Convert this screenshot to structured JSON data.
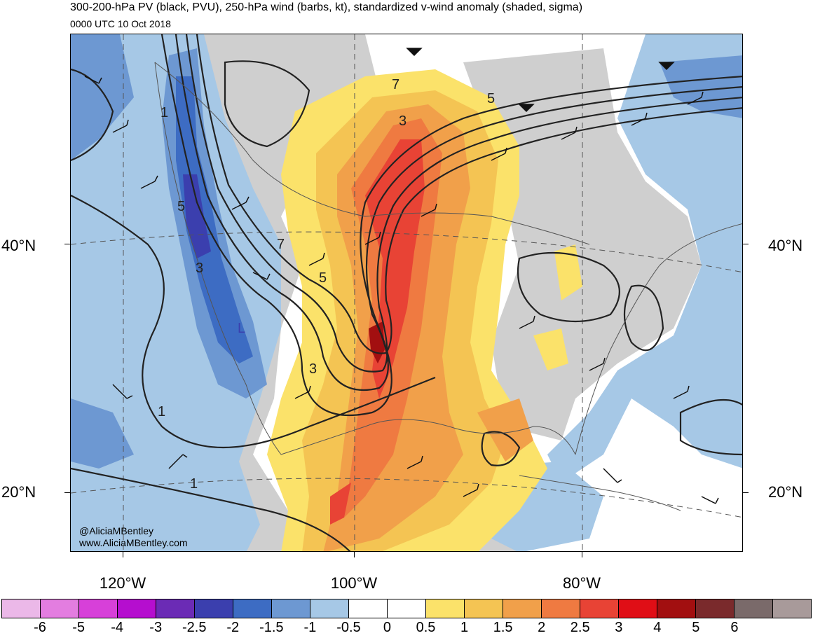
{
  "title": "300-200-hPa PV (black, PVU), 250-hPa wind (barbs, kt), standardized v-wind anomaly (shaded, sigma)",
  "subtitle": "0000 UTC 10 Oct 2018",
  "lat_labels": [
    "40°N",
    "20°N"
  ],
  "lon_labels": [
    "120°W",
    "100°W",
    "80°W"
  ],
  "contour_labels": [
    "1",
    "1",
    "1",
    "3",
    "3",
    "3",
    "5",
    "5",
    "5",
    "7",
    "7",
    "L"
  ],
  "credits": [
    "@AliciaMBentley",
    "www.AliciaMBentley.com"
  ],
  "colorbar": {
    "colors": [
      "#ebb8e8",
      "#e37de0",
      "#d740d9",
      "#b50ecf",
      "#6b2bb5",
      "#3b3fae",
      "#3d6cc3",
      "#6d98d2",
      "#a6c8e6",
      "#ffffff",
      "#ffffff",
      "#fbe26a",
      "#f4c453",
      "#f1a04a",
      "#ef7a41",
      "#e84335",
      "#e00e16",
      "#a20f10",
      "#7a2a2c",
      "#7a6a6a",
      "#a89a9a"
    ],
    "labels": [
      "-6",
      "-5",
      "-4",
      "-3",
      "-2.5",
      "-2",
      "-1.5",
      "-1",
      "-0.5",
      "0",
      "0.5",
      "1",
      "1.5",
      "2",
      "2.5",
      "3",
      "4",
      "5",
      "6"
    ]
  },
  "shading_colors": {
    "gray": "#cfcfcf",
    "blue_light": "#a6c8e6",
    "blue_mid": "#6d98d2",
    "blue_dark": "#3d6cc3",
    "blue_darker": "#3b3fae",
    "yellow": "#fbe26a",
    "orange_light": "#f4c453",
    "orange": "#f1a04a",
    "orange_red": "#ef7a41",
    "red": "#e84335",
    "red_dark": "#e00e16",
    "maroon": "#a20f10"
  }
}
